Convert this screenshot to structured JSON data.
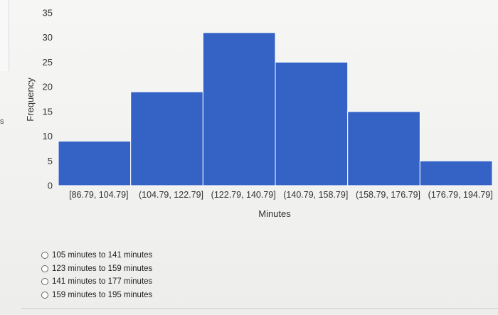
{
  "side_mark": "s",
  "chart_data": {
    "type": "bar",
    "xlabel": "Minutes",
    "ylabel": "Frequency",
    "categories": [
      "[86.79, 104.79]",
      "(104.79, 122.79]",
      "(122.79, 140.79]",
      "(140.79, 158.79]",
      "(158.79, 176.79]",
      "(176.79, 194.79]"
    ],
    "values": [
      9,
      19,
      31,
      25,
      15,
      5
    ],
    "ylim": [
      0,
      35
    ],
    "yticks": [
      0,
      5,
      10,
      15,
      20,
      25,
      30,
      35
    ],
    "bar_color": "#3563c5",
    "grid": false,
    "legend": "none"
  },
  "options": [
    {
      "label": "105 minutes to 141 minutes"
    },
    {
      "label": "123 minutes to 159 minutes"
    },
    {
      "label": "141 minutes to 177 minutes"
    },
    {
      "label": "159 minutes to 195 minutes"
    }
  ]
}
